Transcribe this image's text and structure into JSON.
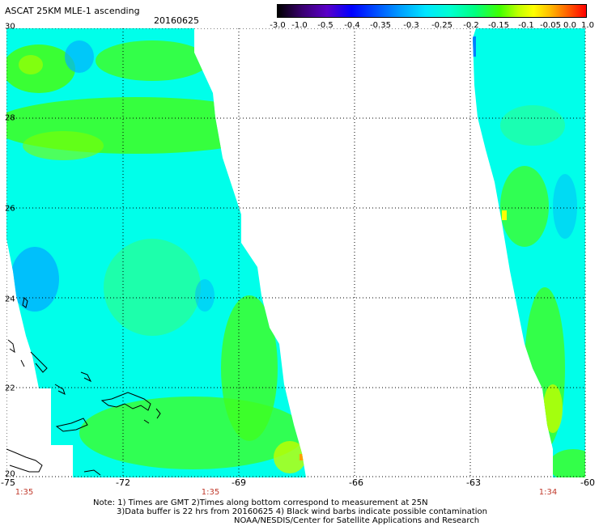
{
  "header": {
    "title": "ASCAT 25KM MLE-1 ascending",
    "date": "20160625"
  },
  "colorbar": {
    "labels": [
      "-3.0",
      "-1.0",
      "-0.5",
      "-0.4",
      "-0.35",
      "-0.3",
      "-0.25",
      "-0.2",
      "-0.15",
      "-0.1",
      "-0.05",
      "0.0",
      "1.0"
    ]
  },
  "map": {
    "lon_range": [
      -75,
      -60
    ],
    "lat_range": [
      20,
      30
    ],
    "lon_ticks": [
      "-75",
      "-72",
      "-69",
      "-66",
      "-63",
      "-60"
    ],
    "lat_ticks": [
      "30",
      "28",
      "26",
      "24",
      "22",
      "20"
    ],
    "times": [
      "1:35",
      "1:35",
      "1:34"
    ],
    "colors": {
      "cyan": "#00ffea",
      "green": "#40ff20",
      "blue": "#00b0ff",
      "yellow": "#ffff00",
      "orange": "#ffa000",
      "time_red": "#c0392b"
    }
  },
  "notes": [
    "Note: 1) Times are GMT 2)Times along bottom correspond to measurement at 25N",
    "3)Data buffer is 22 hrs from 20160625 4) Black wind barbs indicate possible contamination",
    "NOAA/NESDIS/Center for Satellite Applications and Research"
  ]
}
